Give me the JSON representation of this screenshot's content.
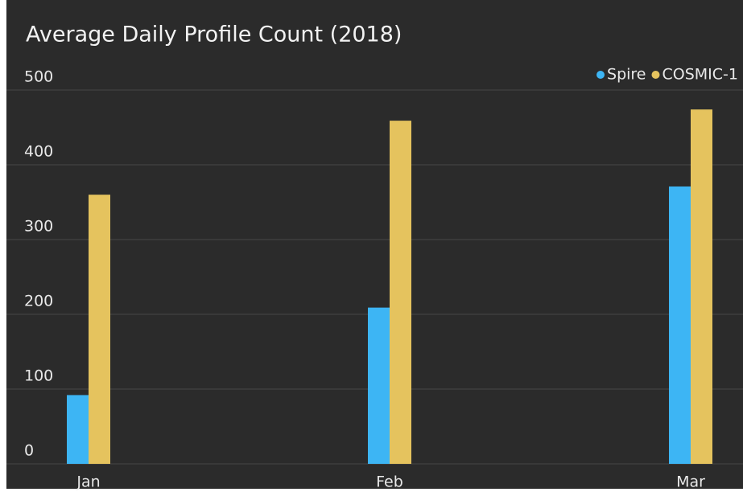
{
  "chart_data": {
    "type": "bar",
    "title": "Average Daily Profile Count (2018)",
    "categories": [
      "Jan",
      "Feb",
      "Mar"
    ],
    "series": [
      {
        "name": "Spire",
        "color": "#3db5f4",
        "values": [
          92,
          209,
          371
        ]
      },
      {
        "name": "COSMIC-1",
        "color": "#e5c35e",
        "values": [
          360,
          459,
          474
        ]
      }
    ],
    "ylim": [
      0,
      500
    ],
    "yticks": [
      0,
      100,
      200,
      300,
      400,
      500
    ],
    "grid": true,
    "legend": "top-right"
  }
}
